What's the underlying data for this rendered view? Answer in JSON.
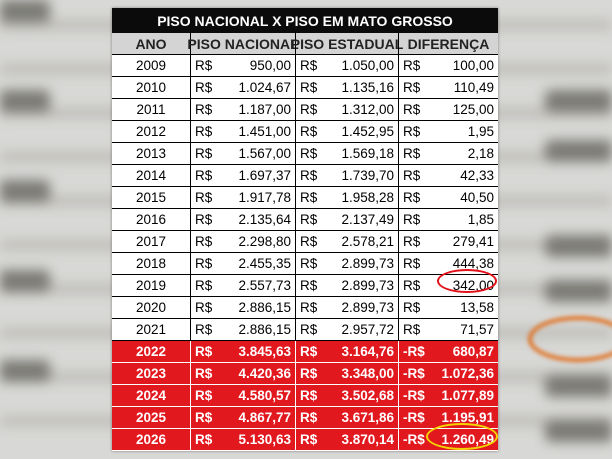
{
  "table": {
    "title": "PISO NACIONAL X PISO EM MATO GROSSO",
    "headers": [
      "ANO",
      "PISO NACIONAL",
      "PISO ESTADUAL",
      "DIFERENÇA"
    ],
    "rows": [
      [
        "2009",
        "R$",
        "950,00",
        "R$",
        "1.050,00",
        "R$",
        "100,00"
      ],
      [
        "2010",
        "R$",
        "1.024,67",
        "R$",
        "1.135,16",
        "R$",
        "110,49"
      ],
      [
        "2011",
        "R$",
        "1.187,00",
        "R$",
        "1.312,00",
        "R$",
        "125,00"
      ],
      [
        "2012",
        "R$",
        "1.451,00",
        "R$",
        "1.452,95",
        "R$",
        "1,95"
      ],
      [
        "2013",
        "R$",
        "1.567,00",
        "R$",
        "1.569,18",
        "R$",
        "2,18"
      ],
      [
        "2014",
        "R$",
        "1.697,37",
        "R$",
        "1.739,70",
        "R$",
        "42,33"
      ],
      [
        "2015",
        "R$",
        "1.917,78",
        "R$",
        "1.958,28",
        "R$",
        "40,50"
      ],
      [
        "2016",
        "R$",
        "2.135,64",
        "R$",
        "2.137,49",
        "R$",
        "1,85"
      ],
      [
        "2017",
        "R$",
        "2.298,80",
        "R$",
        "2.578,21",
        "R$",
        "279,41"
      ],
      [
        "2018",
        "R$",
        "2.455,35",
        "R$",
        "2.899,73",
        "R$",
        "444,38"
      ],
      [
        "2019",
        "R$",
        "2.557,73",
        "R$",
        "2.899,73",
        "R$",
        "342,00"
      ],
      [
        "2020",
        "R$",
        "2.886,15",
        "R$",
        "2.899,73",
        "R$",
        "13,58"
      ],
      [
        "2021",
        "R$",
        "2.886,15",
        "R$",
        "2.957,72",
        "R$",
        "71,57"
      ]
    ],
    "projected_rows": [
      [
        "2022",
        "R$",
        "3.845,63",
        "R$",
        "3.164,76",
        "-R$",
        "680,87"
      ],
      [
        "2023",
        "R$",
        "4.420,36",
        "R$",
        "3.348,00",
        "-R$",
        "1.072,36"
      ],
      [
        "2024",
        "R$",
        "4.580,57",
        "R$",
        "3.502,68",
        "-R$",
        "1.077,89"
      ],
      [
        "2025",
        "R$",
        "4.867,77",
        "R$",
        "3.671,86",
        "-R$",
        "1.195,91"
      ],
      [
        "2026",
        "R$",
        "5.130,63",
        "R$",
        "3.870,14",
        "-R$",
        "1.260,49"
      ]
    ]
  }
}
